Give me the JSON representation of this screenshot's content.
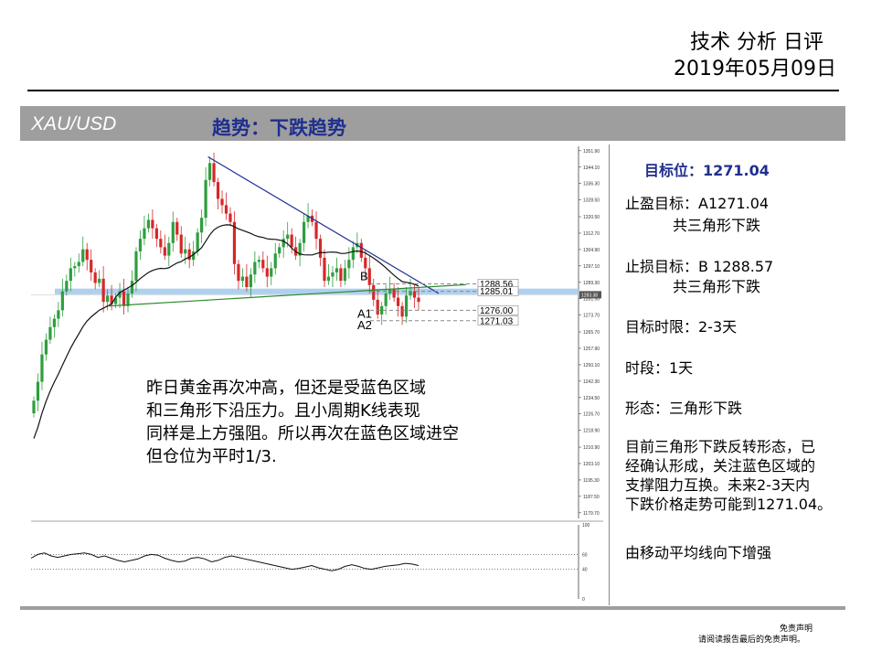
{
  "header": {
    "title": "技术 分析 日评",
    "date": "2019年05月09日"
  },
  "title_bar": {
    "symbol": "XAU/USD",
    "trend": "趋势：下跌趋势"
  },
  "right_panel": {
    "target_level": "目标位：1271.04",
    "take_profit": "止盈目标：A1271.04",
    "take_profit_note": "共三角形下跌",
    "stop_loss": "止损目标：B 1288.57",
    "stop_loss_note": "共三角形下跌",
    "timeframe": "目标时限：2-3天",
    "period": "时段：1天",
    "pattern": "形态：三角形下跌",
    "summary_lines": [
      "目前三角形下跌反转形态，已",
      "经确认形成，关注蓝色区域的",
      "支撑阻力互换。未来2-3天内",
      "下跌价格走势可能到1271.04。"
    ],
    "indicator_note": "由移动平均线向下增强"
  },
  "commentary": [
    "昨日黄金再次冲高，但还是受蓝色区域",
    "和三角形下沿压力。且小周期K线表现",
    "同样是上方强阻。所以再次在蓝色区域进空",
    "但仓位为平时1/3."
  ],
  "footer": {
    "disclaimer_title": "免责声明",
    "disclaimer_text": "请阅读报告最后的免责声明。"
  },
  "chart_data": {
    "type": "candlestick",
    "symbol": "XAU/USD",
    "price_axis": {
      "ticks": [
        "1351.90",
        "1344.10",
        "1336.30",
        "1328.50",
        "1320.50",
        "1312.70",
        "1304.90",
        "1297.10",
        "1289.30",
        "1281.50",
        "1273.70",
        "1265.70",
        "1257.90",
        "1250.10",
        "1242.30",
        "1234.50",
        "1226.70",
        "1218.90",
        "1210.90",
        "1203.10",
        "1195.30",
        "1187.50",
        "1179.70"
      ],
      "range": [
        1177,
        1354
      ],
      "current_label": "1283.38",
      "current": 1283.38
    },
    "levels": [
      {
        "label": "1288.56",
        "value": 1288.56
      },
      {
        "label": "1285.01",
        "value": 1285.01
      },
      {
        "label": "1276.00",
        "value": 1276.0
      },
      {
        "label": "1271.03",
        "value": 1271.03
      }
    ],
    "points": [
      {
        "label": "B",
        "value": 1288.57
      },
      {
        "label": "A1",
        "value": 1276.0
      },
      {
        "label": "A2",
        "value": 1271.04
      }
    ],
    "resistance_zone": [
      1283.6,
      1286.3
    ],
    "close": [
      1233,
      1242,
      1255,
      1262,
      1268,
      1272,
      1276,
      1285,
      1290,
      1296,
      1297,
      1299,
      1305,
      1300,
      1294,
      1289,
      1291,
      1280,
      1283,
      1279,
      1282,
      1285,
      1278,
      1284,
      1290,
      1304,
      1310,
      1315,
      1319,
      1315,
      1310,
      1306,
      1302,
      1308,
      1318,
      1312,
      1303,
      1305,
      1300,
      1304,
      1313,
      1320,
      1338,
      1346,
      1337,
      1329,
      1326,
      1322,
      1318,
      1298,
      1290,
      1292,
      1287,
      1293,
      1299,
      1300,
      1296,
      1292,
      1296,
      1303,
      1306,
      1310,
      1312,
      1306,
      1302,
      1308,
      1318,
      1321,
      1318,
      1310,
      1301,
      1290,
      1292,
      1294,
      1296,
      1290,
      1296,
      1300,
      1306,
      1308,
      1301,
      1296,
      1288,
      1281,
      1274,
      1278,
      1284,
      1286,
      1282,
      1278,
      1273,
      1283,
      1285,
      1282,
      1280
    ],
    "oscillator": {
      "axis": [
        "100",
        "60",
        "40",
        "0"
      ],
      "levels": [
        60,
        40
      ],
      "values": [
        55,
        60,
        62,
        58,
        56,
        58,
        60,
        61,
        62,
        60,
        56,
        58,
        55,
        52,
        50,
        52,
        54,
        58,
        60,
        59,
        55,
        52,
        50,
        51,
        55,
        56,
        54,
        50,
        52,
        56,
        58,
        56,
        54,
        52,
        50,
        48,
        46,
        44,
        42,
        40,
        41,
        43,
        45,
        42,
        40,
        38,
        40,
        44,
        46,
        44,
        41,
        40,
        42,
        44,
        45,
        46,
        48,
        47,
        45
      ]
    }
  }
}
